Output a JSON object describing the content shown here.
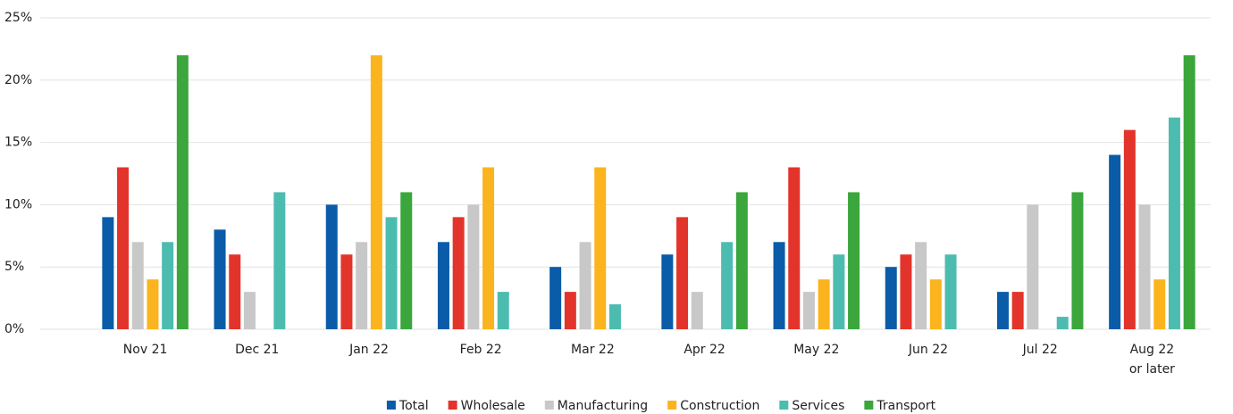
{
  "chart_data": {
    "type": "bar",
    "categories": [
      "Nov 21",
      "Dec 21",
      "Jan 22",
      "Feb 22",
      "Mar 22",
      "Apr 22",
      "May 22",
      "Jun 22",
      "Jul 22",
      "Aug 22\nor later"
    ],
    "series": [
      {
        "name": "Total",
        "color": "#0a5ca8",
        "values": [
          9,
          8,
          10,
          7,
          5,
          6,
          7,
          5,
          3,
          14
        ]
      },
      {
        "name": "Wholesale",
        "color": "#e3342b",
        "values": [
          13,
          6,
          6,
          9,
          3,
          9,
          13,
          6,
          3,
          16
        ]
      },
      {
        "name": "Manufacturing",
        "color": "#c8c8c8",
        "values": [
          7,
          3,
          7,
          10,
          7,
          3,
          3,
          7,
          10,
          10
        ]
      },
      {
        "name": "Construction",
        "color": "#fbb41e",
        "values": [
          4,
          0,
          22,
          13,
          13,
          0,
          4,
          4,
          0,
          4
        ]
      },
      {
        "name": "Services",
        "color": "#4dbcb0",
        "values": [
          7,
          11,
          9,
          3,
          2,
          7,
          6,
          6,
          1,
          17
        ]
      },
      {
        "name": "Transport",
        "color": "#3aa63c",
        "values": [
          22,
          0,
          11,
          0,
          0,
          11,
          11,
          0,
          11,
          22
        ]
      }
    ],
    "ylim": [
      0,
      25
    ],
    "yticks": [
      {
        "value": 0,
        "label": "0%"
      },
      {
        "value": 5,
        "label": "5%"
      },
      {
        "value": 10,
        "label": "10%"
      },
      {
        "value": 15,
        "label": "15%"
      },
      {
        "value": 20,
        "label": "20%"
      },
      {
        "value": 25,
        "label": "25%"
      }
    ],
    "grid": true,
    "legend": "bottom"
  }
}
